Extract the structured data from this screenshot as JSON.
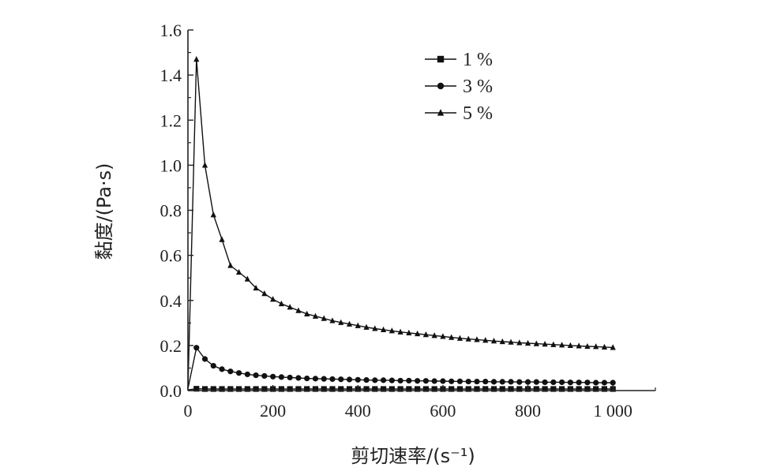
{
  "chart_data": {
    "type": "line",
    "xlabel": "剪切速率/(s⁻¹)",
    "ylabel": "黏度/(Pa·s)",
    "xlim": [
      0,
      1100
    ],
    "ylim": [
      0,
      1.6
    ],
    "x_ticks": [
      0,
      200,
      400,
      600,
      800,
      1000
    ],
    "x_tick_labels": [
      "0",
      "200",
      "400",
      "600",
      "800",
      "1 000"
    ],
    "y_ticks": [
      0,
      0.2,
      0.4,
      0.6,
      0.8,
      1.0,
      1.2,
      1.4,
      1.6
    ],
    "y_tick_labels": [
      "0.0",
      "0.2",
      "0.4",
      "0.6",
      "0.8",
      "1.0",
      "1.2",
      "1.4",
      "1.6"
    ],
    "legend_position": "top-right",
    "x": [
      0.1,
      20,
      40,
      60,
      80,
      100,
      120,
      140,
      160,
      180,
      200,
      220,
      240,
      260,
      280,
      300,
      320,
      340,
      360,
      380,
      400,
      420,
      440,
      460,
      480,
      500,
      520,
      540,
      560,
      580,
      600,
      620,
      640,
      660,
      680,
      700,
      720,
      740,
      760,
      780,
      800,
      820,
      840,
      860,
      880,
      900,
      920,
      940,
      960,
      980,
      1000
    ],
    "series": [
      {
        "name": "1 %",
        "marker": "square",
        "values": [
          0.003,
          0.008,
          0.007,
          0.007,
          0.007,
          0.007,
          0.007,
          0.007,
          0.007,
          0.007,
          0.007,
          0.007,
          0.007,
          0.007,
          0.007,
          0.007,
          0.007,
          0.007,
          0.007,
          0.007,
          0.007,
          0.007,
          0.007,
          0.007,
          0.007,
          0.007,
          0.007,
          0.007,
          0.007,
          0.007,
          0.007,
          0.007,
          0.007,
          0.007,
          0.007,
          0.007,
          0.007,
          0.007,
          0.007,
          0.007,
          0.007,
          0.007,
          0.007,
          0.007,
          0.007,
          0.007,
          0.007,
          0.007,
          0.007,
          0.007,
          0.007
        ]
      },
      {
        "name": "3 %",
        "marker": "circle",
        "values": [
          0.01,
          0.19,
          0.14,
          0.11,
          0.095,
          0.085,
          0.078,
          0.072,
          0.068,
          0.065,
          0.062,
          0.06,
          0.058,
          0.056,
          0.054,
          0.053,
          0.052,
          0.051,
          0.05,
          0.049,
          0.048,
          0.047,
          0.046,
          0.046,
          0.045,
          0.044,
          0.044,
          0.043,
          0.043,
          0.042,
          0.042,
          0.041,
          0.041,
          0.04,
          0.04,
          0.04,
          0.039,
          0.039,
          0.039,
          0.038,
          0.038,
          0.038,
          0.037,
          0.037,
          0.037,
          0.036,
          0.036,
          0.036,
          0.035,
          0.035,
          0.035
        ]
      },
      {
        "name": "5 %",
        "marker": "triangle",
        "values": [
          0.02,
          1.47,
          1.0,
          0.78,
          0.67,
          0.555,
          0.525,
          0.495,
          0.455,
          0.43,
          0.405,
          0.385,
          0.37,
          0.355,
          0.34,
          0.33,
          0.32,
          0.31,
          0.302,
          0.295,
          0.288,
          0.281,
          0.275,
          0.27,
          0.265,
          0.26,
          0.256,
          0.252,
          0.248,
          0.244,
          0.24,
          0.236,
          0.232,
          0.229,
          0.226,
          0.223,
          0.22,
          0.217,
          0.215,
          0.212,
          0.21,
          0.208,
          0.206,
          0.204,
          0.202,
          0.2,
          0.198,
          0.196,
          0.195,
          0.193,
          0.191
        ]
      }
    ]
  }
}
